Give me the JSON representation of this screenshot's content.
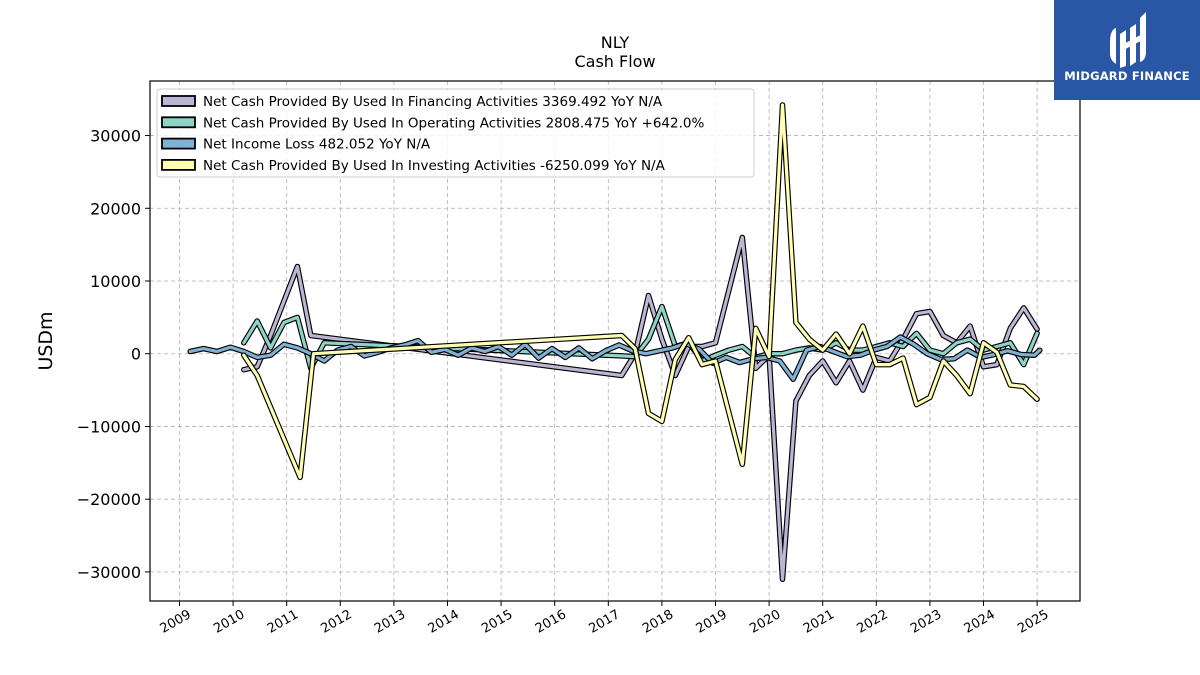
{
  "chart_data": {
    "type": "line",
    "title": "NLY",
    "subtitle": "Cash Flow",
    "xlabel": "",
    "ylabel": "USDm",
    "xlim": [
      2008.45,
      2025.8
    ],
    "ylim": [
      -34000,
      37500
    ],
    "x_ticks": [
      "2009",
      "2010",
      "2011",
      "2012",
      "2013",
      "2014",
      "2015",
      "2016",
      "2017",
      "2018",
      "2019",
      "2020",
      "2021",
      "2022",
      "2023",
      "2024",
      "2025"
    ],
    "y_ticks": [
      30000,
      20000,
      10000,
      0,
      -10000,
      -20000,
      -30000
    ],
    "y_tick_labels": [
      "30000",
      "20000",
      "10000",
      "0",
      "−10000",
      "−20000",
      "−30000"
    ],
    "grid": true,
    "legend_position": "top-left",
    "series": [
      {
        "name": "Net Cash Provided By Used In Financing Activities  3369.492 YoY N/A",
        "color": "#bcb5d6",
        "x": [
          2010.2,
          2010.45,
          2010.7,
          2011.2,
          2011.45,
          2017.25,
          2017.5,
          2017.75,
          2018.0,
          2018.25,
          2018.5,
          2018.75,
          2019.0,
          2019.5,
          2019.75,
          2020.0,
          2020.25,
          2020.5,
          2020.75,
          2021.0,
          2021.25,
          2021.5,
          2021.75,
          2022.0,
          2022.25,
          2022.5,
          2022.75,
          2023.0,
          2023.25,
          2023.5,
          2023.75,
          2024.0,
          2024.25,
          2024.5,
          2024.75,
          2025.0
        ],
        "values": [
          -2200,
          -1800,
          2500,
          12000,
          2500,
          -3000,
          0,
          8000,
          2000,
          -3000,
          1000,
          1000,
          1500,
          16000,
          -2000,
          -200,
          -31000,
          -6500,
          -3000,
          -1000,
          -4000,
          -1000,
          -5000,
          -500,
          -1000,
          2000,
          5500,
          5800,
          2500,
          1500,
          3800,
          -1800,
          -1500,
          3500,
          6300,
          3369
        ]
      },
      {
        "name": "Net Cash Provided By Used In Operating Activities  2808.475 YoY +642.0%",
        "color": "#8dd3c7",
        "x": [
          2010.2,
          2010.45,
          2010.7,
          2010.95,
          2011.2,
          2011.45,
          2011.7,
          2017.25,
          2017.5,
          2017.75,
          2018.0,
          2018.25,
          2018.5,
          2018.75,
          2019.0,
          2019.25,
          2019.5,
          2019.75,
          2020.0,
          2020.25,
          2020.5,
          2020.75,
          2021.0,
          2021.25,
          2021.5,
          2021.75,
          2022.0,
          2022.25,
          2022.5,
          2022.75,
          2023.0,
          2023.25,
          2023.5,
          2023.75,
          2024.0,
          2024.25,
          2024.5,
          2024.75,
          2025.0
        ],
        "values": [
          1500,
          4500,
          800,
          4300,
          5000,
          -2000,
          1500,
          -300,
          -400,
          2000,
          6500,
          1000,
          1500,
          -1000,
          -200,
          500,
          1000,
          -500,
          0,
          0,
          500,
          800,
          500,
          1500,
          500,
          500,
          1000,
          1500,
          1000,
          2800,
          500,
          0,
          1500,
          2000,
          500,
          1000,
          1500,
          -1500,
          2808
        ]
      },
      {
        "name": "Net Income Loss  482.052 YoY N/A",
        "color": "#80b1d3",
        "x": [
          2009.2,
          2009.45,
          2009.7,
          2009.95,
          2010.2,
          2010.45,
          2010.7,
          2010.95,
          2011.2,
          2011.45,
          2011.7,
          2011.95,
          2012.2,
          2012.45,
          2012.7,
          2012.95,
          2013.2,
          2013.45,
          2013.7,
          2013.95,
          2014.2,
          2014.45,
          2014.7,
          2014.95,
          2015.2,
          2015.45,
          2015.7,
          2015.95,
          2016.2,
          2016.45,
          2016.7,
          2016.95,
          2017.2,
          2017.45,
          2017.7,
          2017.95,
          2018.2,
          2018.45,
          2018.7,
          2018.95,
          2019.2,
          2019.45,
          2019.7,
          2019.95,
          2020.2,
          2020.45,
          2020.7,
          2020.95,
          2021.2,
          2021.45,
          2021.7,
          2021.95,
          2022.2,
          2022.45,
          2022.7,
          2022.95,
          2023.2,
          2023.45,
          2023.7,
          2023.95,
          2024.2,
          2024.45,
          2024.7,
          2024.95,
          2025.05
        ],
        "values": [
          300,
          700,
          300,
          900,
          300,
          -500,
          -200,
          1300,
          800,
          0,
          -1000,
          500,
          1000,
          -300,
          200,
          800,
          1200,
          1800,
          200,
          600,
          -200,
          800,
          300,
          1000,
          -200,
          1300,
          -600,
          700,
          -500,
          800,
          -700,
          400,
          1200,
          400,
          0,
          400,
          800,
          1400,
          600,
          -1300,
          -500,
          -1200,
          -700,
          -500,
          -1000,
          -3500,
          500,
          1000,
          300,
          -400,
          -200,
          500,
          1000,
          2300,
          1300,
          0,
          -800,
          -700,
          500,
          -500,
          -100,
          400,
          -100,
          -200,
          482
        ]
      },
      {
        "name": "Net Cash Provided By Used In Investing Activities  -6250.099 YoY N/A",
        "color": "#ffffb3",
        "x": [
          2010.2,
          2010.45,
          2011.25,
          2011.5,
          2017.25,
          2017.5,
          2017.75,
          2018.0,
          2018.25,
          2018.5,
          2018.75,
          2019.0,
          2019.5,
          2019.75,
          2020.0,
          2020.25,
          2020.5,
          2020.75,
          2021.0,
          2021.25,
          2021.5,
          2021.75,
          2022.0,
          2022.25,
          2022.5,
          2022.75,
          2023.0,
          2023.25,
          2023.5,
          2023.75,
          2024.0,
          2024.25,
          2024.5,
          2024.75,
          2025.0
        ],
        "values": [
          -200,
          -3000,
          -17000,
          0,
          2500,
          700,
          -8200,
          -9300,
          -800,
          2200,
          -1500,
          -1000,
          -15200,
          3500,
          -400,
          34200,
          4300,
          2000,
          500,
          2700,
          0,
          3800,
          -1500,
          -1500,
          -600,
          -7000,
          -6000,
          -1000,
          -3000,
          -5500,
          1500,
          200,
          -4300,
          -4500,
          -6250
        ]
      }
    ]
  },
  "logo": {
    "text": "MIDGARD FINANCE"
  }
}
